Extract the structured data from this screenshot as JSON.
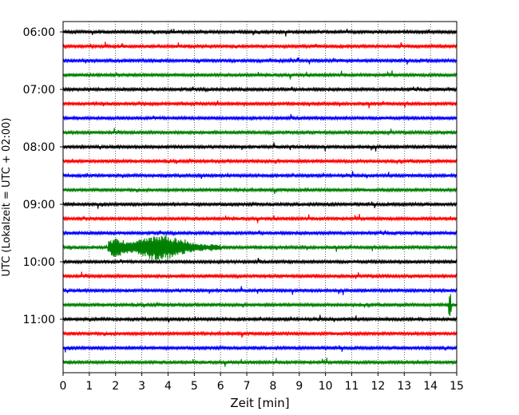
{
  "chart_data": {
    "type": "line",
    "title": "",
    "xlabel": "Zeit  [min]",
    "ylabel": "UTC (Lokalzeit = UTC + 02:00)",
    "xlim": [
      0,
      15
    ],
    "x_ticks": [
      "0",
      "1",
      "2",
      "3",
      "4",
      "5",
      "6",
      "7",
      "8",
      "9",
      "10",
      "11",
      "12",
      "13",
      "14",
      "15"
    ],
    "y_tick_labels": [
      "06:00",
      "07:00",
      "08:00",
      "09:00",
      "10:00",
      "11:00"
    ],
    "grid": "vertical dotted",
    "trace_colors": [
      "#000000",
      "#ff0000",
      "#0000ff",
      "#008000"
    ],
    "series": [
      {
        "start_utc": "06:00",
        "color": "#000000",
        "events": []
      },
      {
        "start_utc": "06:15",
        "color": "#ff0000",
        "events": []
      },
      {
        "start_utc": "06:30",
        "color": "#0000ff",
        "events": []
      },
      {
        "start_utc": "06:45",
        "color": "#008000",
        "events": []
      },
      {
        "start_utc": "07:00",
        "color": "#000000",
        "events": []
      },
      {
        "start_utc": "07:15",
        "color": "#ff0000",
        "events": []
      },
      {
        "start_utc": "07:30",
        "color": "#0000ff",
        "events": []
      },
      {
        "start_utc": "07:45",
        "color": "#008000",
        "events": []
      },
      {
        "start_utc": "08:00",
        "color": "#000000",
        "events": []
      },
      {
        "start_utc": "08:15",
        "color": "#ff0000",
        "events": []
      },
      {
        "start_utc": "08:30",
        "color": "#0000ff",
        "events": []
      },
      {
        "start_utc": "08:45",
        "color": "#008000",
        "events": []
      },
      {
        "start_utc": "09:00",
        "color": "#000000",
        "events": []
      },
      {
        "start_utc": "09:15",
        "color": "#ff0000",
        "events": []
      },
      {
        "start_utc": "09:30",
        "color": "#0000ff",
        "events": []
      },
      {
        "start_utc": "09:45",
        "color": "#008000",
        "events": [
          {
            "from_min": 1.7,
            "to_min": 6.0,
            "peak_min": 3.7
          }
        ]
      },
      {
        "start_utc": "10:00",
        "color": "#000000",
        "events": []
      },
      {
        "start_utc": "10:15",
        "color": "#ff0000",
        "events": []
      },
      {
        "start_utc": "10:30",
        "color": "#0000ff",
        "events": []
      },
      {
        "start_utc": "10:45",
        "color": "#008000",
        "events": [
          {
            "from_min": 14.7,
            "to_min": 14.8,
            "peak_min": 14.75
          }
        ]
      },
      {
        "start_utc": "11:00",
        "color": "#000000",
        "events": []
      },
      {
        "start_utc": "11:15",
        "color": "#ff0000",
        "events": []
      },
      {
        "start_utc": "11:30",
        "color": "#0000ff",
        "events": []
      },
      {
        "start_utc": "11:45",
        "color": "#008000",
        "events": []
      }
    ]
  }
}
